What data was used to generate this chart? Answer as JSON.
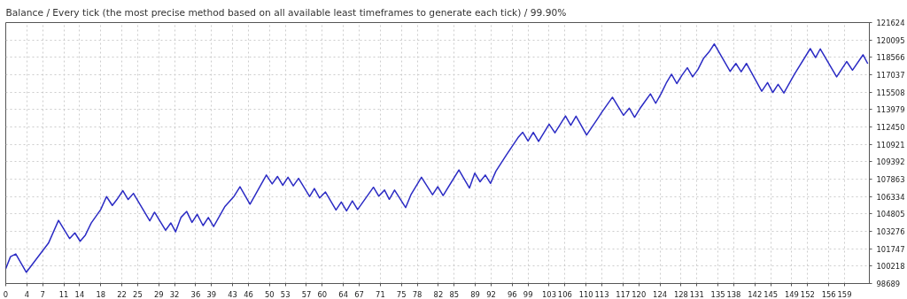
{
  "chart_data": {
    "type": "line",
    "title": "Balance / Every tick (the most precise method based on all available least timeframes to generate each tick) / 99.90%",
    "series": [
      {
        "color": "#2b2bc4",
        "x": [
          0,
          0.9,
          1.9,
          3.9,
          8.1,
          10,
          12.1,
          13.1,
          14.1,
          15.1,
          16.2,
          18,
          19.1,
          20.2,
          21.1,
          22.2,
          23.2,
          24.2,
          27.3,
          28.2,
          30.3,
          31.3,
          32.2,
          33.2,
          34.3,
          35.3,
          36.3,
          37.4,
          38.4,
          39.4,
          41.5,
          43.3,
          44.4,
          46.3,
          49.4,
          50.5,
          51.5,
          52.5,
          53.5,
          54.5,
          55.5,
          57.6,
          58.5,
          59.5,
          60.6,
          62.6,
          63.6,
          64.6,
          65.7,
          66.7,
          69.7,
          70.7,
          71.8,
          72.7,
          73.7,
          75.8,
          76.8,
          78.8,
          80.9,
          81.9,
          82.9,
          85.9,
          87.9,
          88.9,
          89.9,
          90.9,
          91.9,
          92.9,
          94.9,
          97.1,
          98,
          99,
          100,
          101,
          103,
          104.1,
          106.1,
          107.1,
          108.1,
          110.1,
          112,
          113.1,
          115,
          117.1,
          118.2,
          119.2,
          120.2,
          121.1,
          122.2,
          123.2,
          124.2,
          125.2,
          126.2,
          127.2,
          128.2,
          129.2,
          130.2,
          131.2,
          132.3,
          133.3,
          134.3,
          137.3,
          138.4,
          139.4,
          140.4,
          143.3,
          144.4,
          145.4,
          146.4,
          147.5,
          149.5,
          152.5,
          153.5,
          154.4,
          157.5,
          159.4,
          160.5,
          162.5,
          163.4
        ],
        "values": [
          99990,
          101050,
          101290,
          99680,
          102240,
          104240,
          102640,
          103140,
          102400,
          102950,
          104010,
          105190,
          106330,
          105550,
          106090,
          106850,
          106070,
          106610,
          104200,
          104950,
          103370,
          104010,
          103230,
          104490,
          105020,
          104060,
          104770,
          103780,
          104490,
          103700,
          105430,
          106370,
          107200,
          105660,
          108220,
          107440,
          108100,
          107320,
          108030,
          107270,
          107930,
          106330,
          107040,
          106210,
          106730,
          105150,
          105850,
          105070,
          105950,
          105190,
          107150,
          106370,
          106900,
          106090,
          106900,
          105360,
          106490,
          108030,
          106490,
          107200,
          106420,
          108670,
          107080,
          108390,
          107630,
          108220,
          107490,
          108550,
          109990,
          111510,
          111980,
          111220,
          111980,
          111170,
          112690,
          111930,
          113420,
          112590,
          113400,
          111740,
          113040,
          113820,
          115060,
          113470,
          114100,
          113300,
          114060,
          114650,
          115360,
          114530,
          115360,
          116300,
          117080,
          116260,
          117010,
          117650,
          116850,
          117490,
          118500,
          119030,
          119740,
          117330,
          118030,
          117300,
          118030,
          115590,
          116350,
          115480,
          116190,
          115430,
          117080,
          119330,
          118550,
          119310,
          116850,
          118200,
          117440,
          118790,
          118010
        ]
      }
    ],
    "xlim": [
      0,
      163.7
    ],
    "xticks": [
      0,
      4,
      7,
      11,
      14,
      18,
      22,
      25,
      29,
      32,
      36,
      39,
      43,
      46,
      50,
      53,
      57,
      60,
      64,
      67,
      71,
      75,
      78,
      82,
      85,
      89,
      92,
      96,
      99,
      103,
      106,
      110,
      113,
      117,
      120,
      124,
      128,
      131,
      135,
      138,
      142,
      145,
      149,
      152,
      156,
      159
    ],
    "ylim": [
      98689,
      121624
    ],
    "yticks": [
      98689,
      100218,
      101747,
      103276,
      104805,
      106334,
      107863,
      109392,
      110921,
      112450,
      113979,
      115508,
      117037,
      118566,
      120095,
      121624
    ],
    "grid": true
  }
}
